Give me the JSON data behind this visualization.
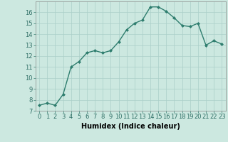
{
  "x": [
    0,
    1,
    2,
    3,
    4,
    5,
    6,
    7,
    8,
    9,
    10,
    11,
    12,
    13,
    14,
    15,
    16,
    17,
    18,
    19,
    20,
    21,
    22,
    23
  ],
  "y": [
    7.5,
    7.7,
    7.5,
    8.5,
    11.0,
    11.5,
    12.3,
    12.5,
    12.3,
    12.5,
    13.3,
    14.4,
    15.0,
    15.3,
    16.5,
    16.5,
    16.1,
    15.5,
    14.8,
    14.7,
    15.0,
    13.0,
    13.4,
    13.1
  ],
  "line_color": "#2e7d6e",
  "marker": "D",
  "marker_size": 2,
  "bg_color": "#cce8e0",
  "grid_color": "#aacfc8",
  "xlabel": "Humidex (Indice chaleur)",
  "xlim": [
    -0.5,
    23.5
  ],
  "ylim": [
    7,
    17
  ],
  "yticks": [
    7,
    8,
    9,
    10,
    11,
    12,
    13,
    14,
    15,
    16
  ],
  "xticks": [
    0,
    1,
    2,
    3,
    4,
    5,
    6,
    7,
    8,
    9,
    10,
    11,
    12,
    13,
    14,
    15,
    16,
    17,
    18,
    19,
    20,
    21,
    22,
    23
  ],
  "xlabel_fontsize": 7,
  "tick_fontsize": 6,
  "linewidth": 1.0
}
